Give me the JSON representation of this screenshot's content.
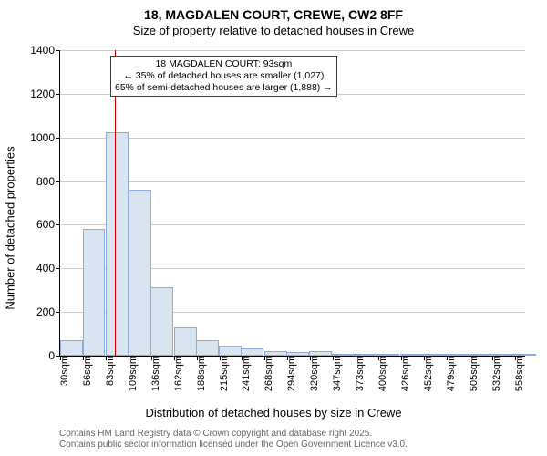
{
  "title_main": "18, MAGDALEN COURT, CREWE, CW2 8FF",
  "title_sub": "Size of property relative to detached houses in Crewe",
  "y_axis_label": "Number of detached properties",
  "x_axis_label": "Distribution of detached houses by size in Crewe",
  "footer_line1": "Contains HM Land Registry data © Crown copyright and database right 2025.",
  "footer_line2": "Contains public sector information licensed under the Open Government Licence v3.0.",
  "chart": {
    "type": "histogram",
    "ylim": [
      0,
      1400
    ],
    "yticks": [
      0,
      200,
      400,
      600,
      800,
      1000,
      1200,
      1400
    ],
    "xmin": 30,
    "xmax": 570,
    "xtick_start": 30,
    "xtick_step": 26.4,
    "xtick_count": 21,
    "xtick_unit": "sqm",
    "bar_fill": "#d8e4f0",
    "bar_border": "#8faadc",
    "grid_color": "#cccccc",
    "ref_line_x": 93,
    "ref_line_color": "#cc0000",
    "bars": [
      {
        "x0": 30,
        "value": 70
      },
      {
        "x0": 56,
        "value": 580
      },
      {
        "x0": 83,
        "value": 1025
      },
      {
        "x0": 109,
        "value": 760
      },
      {
        "x0": 135,
        "value": 315
      },
      {
        "x0": 162,
        "value": 130
      },
      {
        "x0": 188,
        "value": 70
      },
      {
        "x0": 214,
        "value": 45
      },
      {
        "x0": 240,
        "value": 35
      },
      {
        "x0": 267,
        "value": 22
      },
      {
        "x0": 293,
        "value": 15
      },
      {
        "x0": 319,
        "value": 20
      },
      {
        "x0": 346,
        "value": 5
      },
      {
        "x0": 372,
        "value": 4
      },
      {
        "x0": 398,
        "value": 3
      },
      {
        "x0": 425,
        "value": 3
      },
      {
        "x0": 451,
        "value": 2
      },
      {
        "x0": 477,
        "value": 2
      },
      {
        "x0": 503,
        "value": 1
      },
      {
        "x0": 530,
        "value": 1
      },
      {
        "x0": 556,
        "value": 1
      }
    ],
    "bar_step": 26.4
  },
  "annotation": {
    "line1": "18 MAGDALEN COURT: 93sqm",
    "line2": "← 35% of detached houses are smaller (1,027)",
    "line3": "65% of semi-detached houses are larger (1,888) →"
  }
}
